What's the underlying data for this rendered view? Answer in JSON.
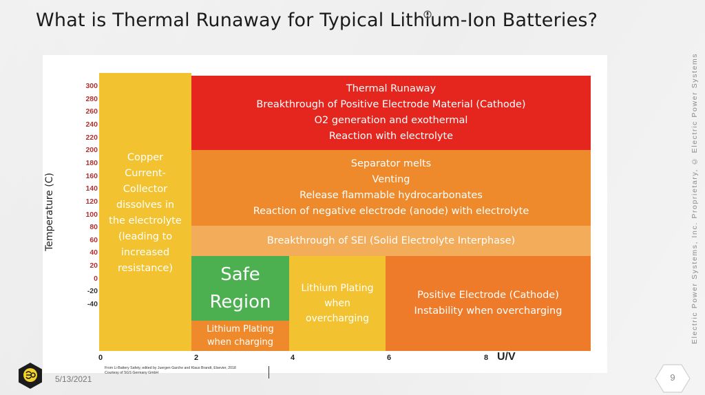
{
  "slide": {
    "title": "What is Thermal Runaway for Typical Lithium-Ion Batteries?",
    "date": "5/13/2021",
    "page_number": "9",
    "side_text": "Electric Power Systems, Inc. Proprietary, © Electric Power Systems",
    "source_line1": "From Li-Battery Safety, edited by Juergen Garche and Klaus Brandt, Elsevier, 2018",
    "source_line2": "Courtesy of SGS Germany GmbH"
  },
  "axes": {
    "y_label": "Temperature (C)",
    "y_ticks": [
      "300",
      "280",
      "260",
      "240",
      "220",
      "200",
      "180",
      "160",
      "140",
      "120",
      "100",
      "80",
      "60",
      "40",
      "20",
      "0",
      "-20",
      "-40"
    ],
    "x_ticks": [
      "0",
      "2",
      "4",
      "6",
      "8"
    ],
    "x_unit": "U/V"
  },
  "regions": {
    "copper": "Copper\nCurrent-\nCollector\ndissolves in\nthe electrolyte\n(leading to\nincreased\nresistance)",
    "runaway": "Thermal Runaway\nBreakthrough of Positive Electrode Material (Cathode)\nO2 generation and exothermal\nReaction with electrolyte",
    "separator": "Separator melts\nVenting\nRelease flammable hydrocarbonates\nReaction of negative electrode (anode) with electrolyte",
    "sei": "Breakthrough of SEI (Solid Electrolyte Interphase)",
    "safe": "Safe\nRegion",
    "lithium_charging": "Lithium Plating\nwhen charging",
    "lithium_over": "Lithium Plating\nwhen\novercharging",
    "cathode": "Positive Electrode (Cathode)\nInstability when overcharging"
  },
  "colors": {
    "yellow": "#f2c230",
    "red": "#e5261f",
    "orange": "#ee8a2b",
    "light_orange": "#f3ac5a",
    "green": "#4caf50"
  }
}
